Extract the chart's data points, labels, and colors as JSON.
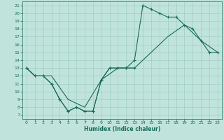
{
  "xlabel": "Humidex (Indice chaleur)",
  "xlim": [
    -0.5,
    23.5
  ],
  "ylim": [
    6.5,
    21.5
  ],
  "xticks": [
    0,
    1,
    2,
    3,
    4,
    5,
    6,
    7,
    8,
    9,
    10,
    11,
    12,
    13,
    14,
    15,
    16,
    17,
    18,
    19,
    20,
    21,
    22,
    23
  ],
  "yticks": [
    7,
    8,
    9,
    10,
    11,
    12,
    13,
    14,
    15,
    16,
    17,
    18,
    19,
    20,
    21
  ],
  "bg_color": "#c0e4dc",
  "grid_color": "#9ecec4",
  "line_color": "#1a6b5a",
  "curve1_x": [
    0,
    1,
    2,
    3,
    4,
    5,
    6,
    7,
    8,
    9,
    10,
    11,
    12,
    13,
    14,
    15,
    16,
    17,
    18,
    19,
    20,
    21,
    22,
    23
  ],
  "curve1_y": [
    13,
    12,
    12,
    11,
    9,
    7.5,
    8,
    7.5,
    7.5,
    11.5,
    13,
    13,
    13,
    14,
    21,
    20.5,
    20,
    19.5,
    19.5,
    18.5,
    18,
    16.5,
    15,
    15
  ],
  "curve2_x": [
    0,
    1,
    3,
    5,
    7,
    9,
    11,
    13,
    15,
    17,
    19,
    21,
    23
  ],
  "curve2_y": [
    13,
    12,
    12,
    9,
    8,
    11.5,
    13,
    13,
    15,
    17,
    18.5,
    16.5,
    15
  ],
  "curve3_x": [
    0,
    1,
    2,
    3,
    4,
    5,
    6,
    7,
    8,
    9,
    10,
    11,
    12,
    13
  ],
  "curve3_y": [
    13,
    12,
    12,
    11,
    9,
    7.5,
    8,
    7.5,
    7.5,
    11.5,
    13,
    13,
    13,
    13
  ]
}
